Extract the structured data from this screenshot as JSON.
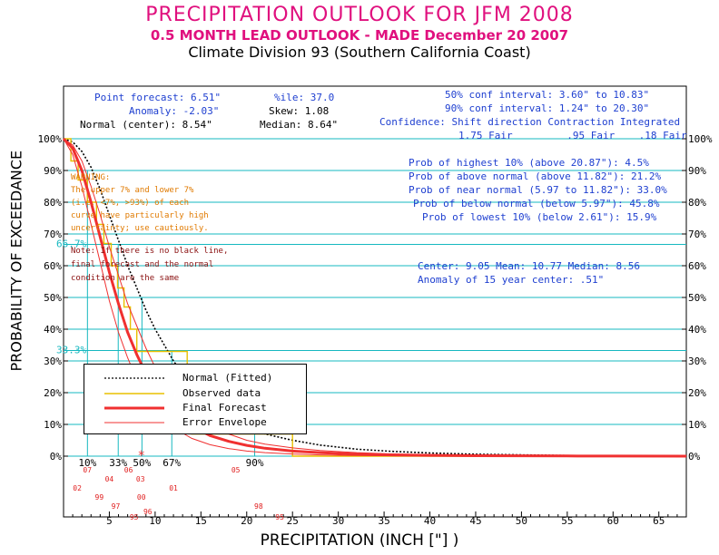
{
  "header": {
    "title": "PRECIPITATION OUTLOOK FOR JFM 2008",
    "subtitle": "0.5 MONTH LEAD OUTLOOK   - MADE December 20 2007",
    "division": "Climate Division 93 (Southern California Coast)"
  },
  "stats_left": {
    "point_forecast": "Point forecast: 6.51\"",
    "anomaly": "Anomaly: -2.03\"",
    "normal_center": "Normal (center): 8.54\""
  },
  "stats_mid": {
    "ile": "%ile:  37.0",
    "skew": "Skew:  1.08",
    "median": "Median: 8.64\""
  },
  "stats_right": {
    "conf50": "50% conf interval: 3.60\" to 10.83\"",
    "conf90": "90% conf interval: 1.24\" to 20.30\"",
    "confidence_header": "Confidence: Shift direction   Contraction   Integrated",
    "confidence_values": "1.75 Fair         .95 Fair    .18 Fair"
  },
  "probabilities": {
    "highest10": "Prob of highest 10% (above 20.87\"): 4.5%",
    "above_normal": "Prob of above normal (above 11.82\"): 21.2%",
    "near_normal": "Prob of near normal (5.97 to 11.82\"): 33.0%",
    "below_normal": "Prob of below normal (below 5.97\"): 45.8%",
    "lowest10": "Prob of lowest 10% (below 2.61\"): 15.9%"
  },
  "center_stats": {
    "line1": "Center: 9.05 Mean: 10.77 Median: 8.56",
    "line2": "Anomaly of 15 year center:  .51\""
  },
  "warning": {
    "title": "WARNING:",
    "lines": [
      "The upper 7% and lower 7%",
      "(i.e. <7%, >93%) of each",
      "curve have particularly high",
      "uncertainty; use cautiously."
    ]
  },
  "note": {
    "lines": [
      "Note: If there is no black line,",
      "final forecast and the normal",
      "condition are the same"
    ]
  },
  "axis_labels": {
    "y": "PROBABILITY OF EXCEEDANCE",
    "x": "PRECIPITATION (INCH [\"] )"
  },
  "colors": {
    "title": "#e0107e",
    "blue_text": "#1e3fd0",
    "teal": "#16b8c0",
    "normal": "#000000",
    "observed": "#e8c000",
    "forecast": "#f03030",
    "envelope": "#f03030"
  },
  "chart_data": {
    "type": "line",
    "title": "PRECIPITATION OUTLOOK FOR JFM 2008",
    "xlabel": "PRECIPITATION (INCH [\"] )",
    "ylabel": "PROBABILITY OF EXCEEDANCE",
    "xlim": [
      0,
      68
    ],
    "ylim": [
      0,
      100
    ],
    "x_ticks": [
      5,
      10,
      15,
      20,
      25,
      30,
      35,
      40,
      45,
      50,
      55,
      60,
      65
    ],
    "y_ticks": [
      0,
      10,
      20,
      30,
      40,
      50,
      60,
      70,
      80,
      90,
      100
    ],
    "y_tick_labels": [
      "0%",
      "10%",
      "20%",
      "30%",
      "40%",
      "50%",
      "60%",
      "70%",
      "80%",
      "90%",
      "100%"
    ],
    "reference_lines": [
      {
        "y": 66.7,
        "label": "66.7%"
      },
      {
        "y": 33.3,
        "label": "33.3%"
      }
    ],
    "percentile_markers": [
      {
        "label": "10%",
        "x": 2.61
      },
      {
        "label": "33%",
        "x": 5.97
      },
      {
        "label": "50%",
        "x": 8.56
      },
      {
        "label": "67%",
        "x": 11.82
      },
      {
        "label": "90%",
        "x": 20.87
      }
    ],
    "forecast_marker_x": 8.5,
    "year_labels": [
      {
        "text": "07",
        "x": 2.6,
        "row": 0
      },
      {
        "text": "06",
        "x": 7.1,
        "row": 0
      },
      {
        "text": "05",
        "x": 18.8,
        "row": 0
      },
      {
        "text": "04",
        "x": 5.0,
        "row": 1
      },
      {
        "text": "03",
        "x": 8.4,
        "row": 1
      },
      {
        "text": "02",
        "x": 1.5,
        "row": 2
      },
      {
        "text": "01",
        "x": 12.0,
        "row": 2
      },
      {
        "text": "00",
        "x": 8.5,
        "row": 3
      },
      {
        "text": "99",
        "x": 3.9,
        "row": 3
      },
      {
        "text": "97",
        "x": 5.7,
        "row": 4
      },
      {
        "text": "98",
        "x": 21.3,
        "row": 4
      },
      {
        "text": "96",
        "x": 9.2,
        "row": 4.6
      },
      {
        "text": "95",
        "x": 7.7,
        "row": 5.2
      },
      {
        "text": "95",
        "x": 23.6,
        "row": 5.2
      }
    ],
    "legend": [
      "Normal (Fitted)",
      "Observed data",
      "Final Forecast",
      "Error Envelope"
    ],
    "series": [
      {
        "name": "Normal (Fitted)",
        "style": "dotted",
        "x": [
          0,
          1,
          2,
          3,
          4,
          5,
          6,
          7,
          8,
          9,
          10,
          11,
          12,
          14,
          16,
          18,
          20,
          22,
          25,
          28,
          32,
          36,
          40,
          45,
          50,
          55,
          60,
          68
        ],
        "y": [
          100,
          99,
          96,
          91,
          84,
          76,
          68,
          60,
          53,
          46,
          40,
          35,
          30,
          22,
          16,
          12,
          9,
          7,
          5,
          3.5,
          2.2,
          1.5,
          1,
          0.6,
          0.4,
          0.2,
          0.1,
          0
        ]
      },
      {
        "name": "Observed data",
        "style": "step",
        "x": [
          0,
          0.8,
          0.8,
          1.6,
          1.6,
          2.6,
          2.6,
          3.6,
          3.6,
          4.4,
          4.4,
          5.2,
          5.2,
          5.9,
          5.9,
          6.6,
          6.6,
          7.3,
          7.3,
          8.0,
          8.0,
          8.6,
          8.6,
          9.1,
          9.1,
          11.0,
          11.0,
          13.5,
          13.5,
          14.0,
          14.0,
          25.0,
          25.0,
          68
        ],
        "y": [
          100,
          100,
          93,
          93,
          87,
          87,
          80,
          80,
          73,
          73,
          67,
          67,
          60,
          60,
          53,
          53,
          47,
          47,
          40,
          40,
          33,
          33,
          33,
          33,
          33,
          33,
          33,
          33,
          27,
          27,
          7,
          7,
          0,
          0
        ]
      },
      {
        "name": "Final Forecast",
        "style": "thick",
        "x": [
          0,
          1,
          2,
          3,
          4,
          5,
          6,
          7,
          8,
          9,
          10,
          12,
          14,
          16,
          18,
          20,
          22,
          25,
          28,
          32,
          36,
          40,
          45,
          50,
          55,
          60,
          68
        ],
        "y": [
          100,
          97,
          90,
          80,
          69,
          58,
          48,
          39,
          32,
          26,
          21,
          14,
          9.5,
          6.5,
          4.7,
          3.4,
          2.5,
          1.6,
          1.1,
          0.6,
          0.4,
          0.25,
          0.15,
          0.1,
          0.05,
          0.02,
          0
        ]
      },
      {
        "name": "Error Envelope Upper",
        "style": "thin",
        "x": [
          0,
          1,
          2,
          3,
          4,
          5,
          6,
          7,
          8,
          9,
          10,
          12,
          14,
          16,
          18,
          20,
          22,
          25,
          28,
          32,
          36,
          40,
          45,
          50,
          55,
          60,
          68
        ],
        "y": [
          100,
          98,
          93,
          85,
          76,
          66,
          57,
          48,
          41,
          34,
          28,
          19,
          13.5,
          9.5,
          7,
          5,
          3.8,
          2.6,
          1.8,
          1.1,
          0.7,
          0.45,
          0.25,
          0.15,
          0.08,
          0.04,
          0
        ]
      },
      {
        "name": "Error Envelope Lower",
        "style": "thin",
        "x": [
          0,
          1,
          2,
          3,
          4,
          5,
          6,
          7,
          8,
          9,
          10,
          12,
          14,
          16,
          18,
          20,
          22,
          25,
          28,
          32,
          36,
          40,
          45,
          50,
          55,
          60,
          68
        ],
        "y": [
          100,
          95,
          85,
          73,
          61,
          49,
          39,
          31,
          24,
          19,
          15,
          9,
          5.6,
          3.6,
          2.4,
          1.6,
          1.1,
          0.7,
          0.4,
          0.2,
          0.1,
          0.05,
          0.03,
          0.02,
          0.01,
          0.005,
          0
        ]
      }
    ]
  }
}
